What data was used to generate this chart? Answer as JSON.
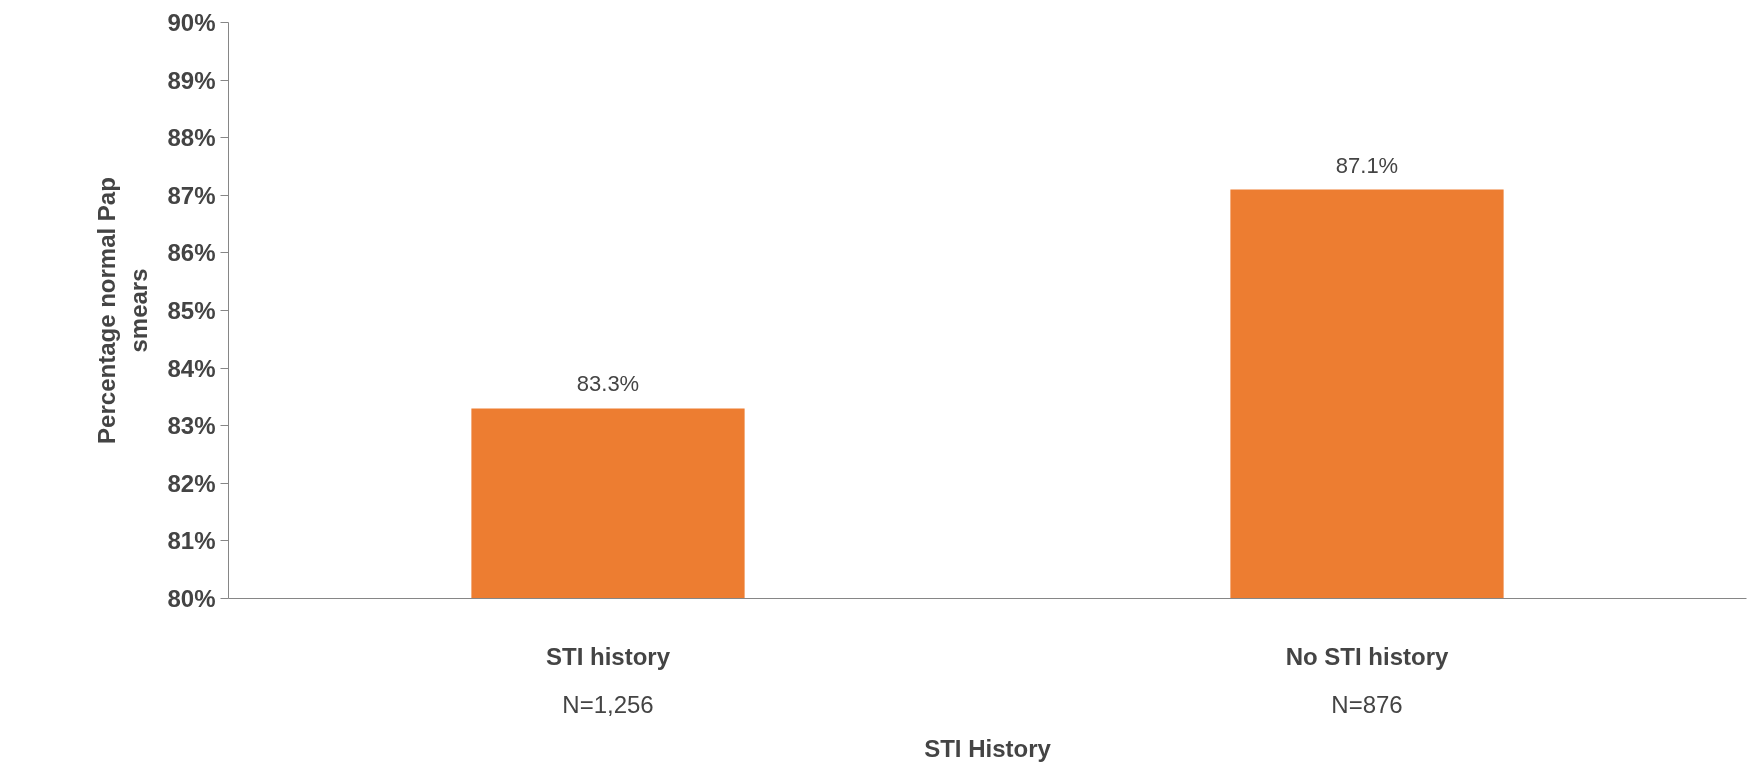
{
  "chart_data": {
    "type": "bar",
    "xlabel": "STI History",
    "ylabel": "Percentage normal Pap\nsmears",
    "categories": [
      "STI history",
      "No STI history"
    ],
    "values": [
      83.3,
      87.1
    ],
    "color": "#ed7d31",
    "data_labels": true,
    "value_labels": [
      "83.3%",
      "87.1%"
    ],
    "annotations": [
      "N=1,256",
      "N=876"
    ],
    "ylim": [
      80,
      90
    ],
    "yticks": [
      {
        "value": 80,
        "label": "80%"
      },
      {
        "value": 81,
        "label": "81%"
      },
      {
        "value": 82,
        "label": "82%"
      },
      {
        "value": 83,
        "label": "83%"
      },
      {
        "value": 84,
        "label": "84%"
      },
      {
        "value": 85,
        "label": "85%"
      },
      {
        "value": 86,
        "label": "86%"
      },
      {
        "value": 87,
        "label": "87%"
      },
      {
        "value": 88,
        "label": "88%"
      },
      {
        "value": 89,
        "label": "89%"
      },
      {
        "value": 90,
        "label": "90%"
      }
    ],
    "grid": false
  }
}
